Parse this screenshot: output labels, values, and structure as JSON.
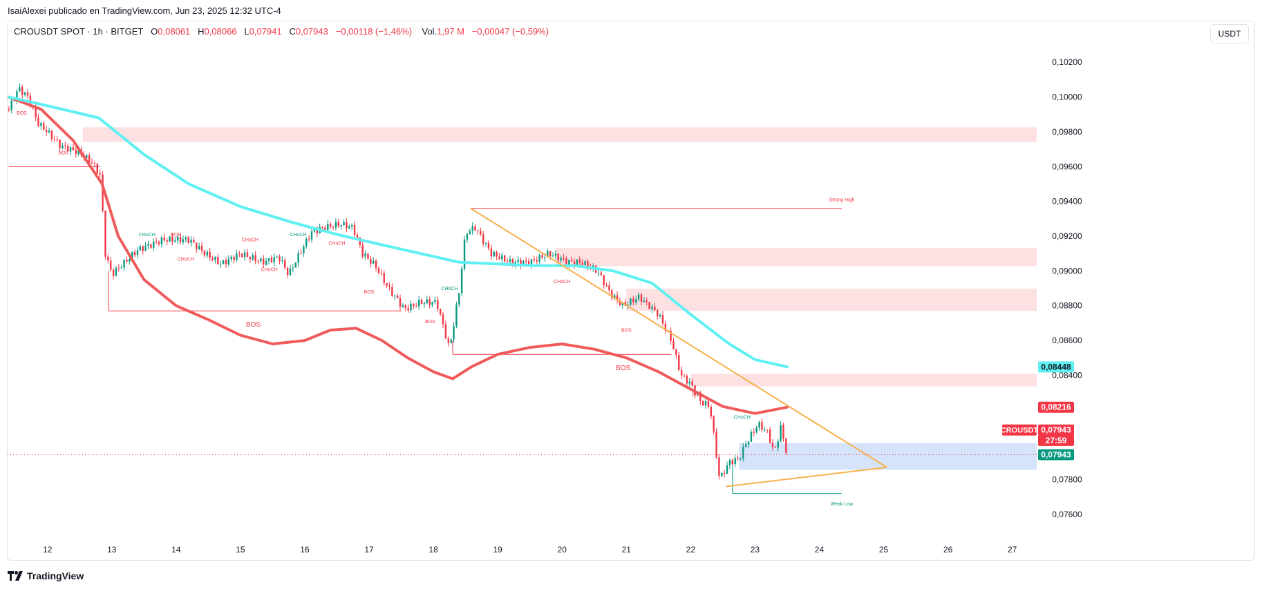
{
  "header": {
    "publisher": "IsaiAlexei publicado en TradingView.com, Jun 23, 2025 12:32 UTC-4"
  },
  "legend": {
    "symbol": "CROUSDT SPOT · 1h · BITGET",
    "open_label": "O",
    "open": "0,08061",
    "high_label": "H",
    "high": "0,08066",
    "low_label": "L",
    "low": "0,07941",
    "close_label": "C",
    "close": "0,07943",
    "change": "−0,00118 (−1,46%)",
    "vol_label": "Vol.",
    "vol": "1,97 M",
    "vol_change": "−0,00047 (−0,59%)"
  },
  "currency_button": "USDT",
  "footer": {
    "brand": "TradingView"
  },
  "colors": {
    "bull": "#089981",
    "bear": "#f23645",
    "ema_fast": "#f05a5a",
    "ema_slow": "#5ef0f2",
    "trendline": "#f7b04b",
    "supply_zone": "#fde0e2",
    "demand_zone": "#d6e4fb"
  },
  "chart_data": {
    "type": "candlestick",
    "symbol": "CROUSDT",
    "timeframe": "1h",
    "x_ticks": [
      "12",
      "13",
      "14",
      "15",
      "16",
      "17",
      "18",
      "19",
      "20",
      "21",
      "22",
      "23",
      "24",
      "25",
      "26",
      "27"
    ],
    "y_ticks": [
      "0,10200",
      "0,10000",
      "0,09800",
      "0,09600",
      "0,09400",
      "0,09200",
      "0,09000",
      "0,08800",
      "0,08600",
      "0,08400",
      "0,07800",
      "0,07600"
    ],
    "ylim": [
      0.075,
      0.1034
    ],
    "xlim": [
      11.38,
      27.38
    ],
    "price_key_points": [
      [
        11.4,
        0.0993
      ],
      [
        11.55,
        0.1005
      ],
      [
        11.7,
        0.1
      ],
      [
        11.85,
        0.0985
      ],
      [
        12.0,
        0.098
      ],
      [
        12.2,
        0.0972
      ],
      [
        12.5,
        0.0968
      ],
      [
        12.7,
        0.0962
      ],
      [
        12.82,
        0.0955
      ],
      [
        12.9,
        0.091
      ],
      [
        13.0,
        0.0898
      ],
      [
        13.4,
        0.0912
      ],
      [
        13.8,
        0.0918
      ],
      [
        14.2,
        0.0918
      ],
      [
        14.45,
        0.091
      ],
      [
        14.7,
        0.0904
      ],
      [
        15.0,
        0.091
      ],
      [
        15.35,
        0.0905
      ],
      [
        15.6,
        0.0908
      ],
      [
        15.75,
        0.0898
      ],
      [
        15.95,
        0.0912
      ],
      [
        16.1,
        0.0922
      ],
      [
        16.3,
        0.0925
      ],
      [
        16.55,
        0.0927
      ],
      [
        16.75,
        0.0925
      ],
      [
        16.9,
        0.091
      ],
      [
        17.1,
        0.0903
      ],
      [
        17.3,
        0.089
      ],
      [
        17.55,
        0.0878
      ],
      [
        17.8,
        0.0882
      ],
      [
        18.05,
        0.0882
      ],
      [
        18.25,
        0.0855
      ],
      [
        18.4,
        0.0888
      ],
      [
        18.5,
        0.0922
      ],
      [
        18.65,
        0.0925
      ],
      [
        18.9,
        0.091
      ],
      [
        19.2,
        0.0905
      ],
      [
        19.5,
        0.0905
      ],
      [
        19.8,
        0.091
      ],
      [
        20.1,
        0.0905
      ],
      [
        20.3,
        0.0905
      ],
      [
        20.55,
        0.09
      ],
      [
        20.75,
        0.0887
      ],
      [
        20.95,
        0.088
      ],
      [
        21.2,
        0.0885
      ],
      [
        21.5,
        0.0875
      ],
      [
        21.7,
        0.086
      ],
      [
        21.85,
        0.084
      ],
      [
        22.0,
        0.0835
      ],
      [
        22.15,
        0.0825
      ],
      [
        22.3,
        0.0822
      ],
      [
        22.45,
        0.078
      ],
      [
        22.6,
        0.079
      ],
      [
        22.75,
        0.0792
      ],
      [
        22.85,
        0.08
      ],
      [
        23.05,
        0.0812
      ],
      [
        23.2,
        0.0807
      ],
      [
        23.3,
        0.0795
      ],
      [
        23.4,
        0.081
      ],
      [
        23.5,
        0.07943
      ]
    ],
    "series": [
      {
        "name": "EMA fast",
        "color": "#f05a5a",
        "points": [
          [
            11.4,
            0.1
          ],
          [
            11.9,
            0.0993
          ],
          [
            12.4,
            0.0975
          ],
          [
            12.85,
            0.095
          ],
          [
            13.1,
            0.092
          ],
          [
            13.5,
            0.0895
          ],
          [
            14.0,
            0.088
          ],
          [
            14.5,
            0.0872
          ],
          [
            15.0,
            0.0863
          ],
          [
            15.5,
            0.0858
          ],
          [
            16.0,
            0.086
          ],
          [
            16.4,
            0.0866
          ],
          [
            16.8,
            0.0867
          ],
          [
            17.2,
            0.086
          ],
          [
            17.6,
            0.085
          ],
          [
            18.0,
            0.0842
          ],
          [
            18.3,
            0.0838
          ],
          [
            18.6,
            0.0845
          ],
          [
            19.0,
            0.0852
          ],
          [
            19.5,
            0.0856
          ],
          [
            20.0,
            0.0858
          ],
          [
            20.5,
            0.0855
          ],
          [
            21.0,
            0.085
          ],
          [
            21.5,
            0.0842
          ],
          [
            22.0,
            0.0832
          ],
          [
            22.5,
            0.0822
          ],
          [
            23.0,
            0.0818
          ],
          [
            23.5,
            0.08216
          ]
        ]
      },
      {
        "name": "EMA slow",
        "color": "#5ef0f2",
        "points": [
          [
            11.4,
            0.1
          ],
          [
            12.0,
            0.0995
          ],
          [
            12.8,
            0.0988
          ],
          [
            13.5,
            0.0967
          ],
          [
            14.2,
            0.095
          ],
          [
            15.0,
            0.0937
          ],
          [
            15.8,
            0.0928
          ],
          [
            16.5,
            0.0921
          ],
          [
            17.2,
            0.0915
          ],
          [
            17.8,
            0.091
          ],
          [
            18.4,
            0.0905
          ],
          [
            19.0,
            0.0904
          ],
          [
            19.6,
            0.0903
          ],
          [
            20.2,
            0.0903
          ],
          [
            20.8,
            0.09
          ],
          [
            21.4,
            0.0893
          ],
          [
            22.0,
            0.0875
          ],
          [
            22.6,
            0.0858
          ],
          [
            23.0,
            0.0849
          ],
          [
            23.5,
            0.08448
          ]
        ]
      }
    ],
    "zones": [
      {
        "kind": "supply",
        "from": 0.09826,
        "to": 0.09742
      },
      {
        "kind": "supply",
        "from": 0.09132,
        "to": 0.09028
      },
      {
        "kind": "supply",
        "from": 0.08898,
        "to": 0.0877
      },
      {
        "kind": "supply",
        "from": 0.08408,
        "to": 0.08336
      },
      {
        "kind": "demand",
        "from": 0.0801,
        "to": 0.07856
      }
    ],
    "labels": [
      {
        "text": "BOS",
        "x": 11.6,
        "y": 0.099,
        "color": "#f23645"
      },
      {
        "text": "BOS",
        "x": 12.25,
        "y": 0.0967,
        "color": "#f23645"
      },
      {
        "text": "EQH",
        "x": 14.0,
        "y": 0.092,
        "color": "#f23645"
      },
      {
        "text": "CHoCH",
        "x": 13.55,
        "y": 0.092,
        "color": "#089981"
      },
      {
        "text": "CHoCH",
        "x": 14.15,
        "y": 0.0906,
        "color": "#f23645"
      },
      {
        "text": "CHoCH",
        "x": 15.15,
        "y": 0.0917,
        "color": "#f23645"
      },
      {
        "text": "CHoCH",
        "x": 15.9,
        "y": 0.092,
        "color": "#089981"
      },
      {
        "text": "CHoCH",
        "x": 15.45,
        "y": 0.09,
        "color": "#f23645"
      },
      {
        "text": "CHoCH",
        "x": 16.5,
        "y": 0.0915,
        "color": "#f23645"
      },
      {
        "text": "BOS",
        "x": 15.2,
        "y": 0.0868,
        "color": "#f23645"
      },
      {
        "text": "BOS",
        "x": 17.0,
        "y": 0.0887,
        "color": "#f23645"
      },
      {
        "text": "BOS",
        "x": 17.95,
        "y": 0.087,
        "color": "#f23645"
      },
      {
        "text": "CHoCH",
        "x": 18.25,
        "y": 0.0889,
        "color": "#089981"
      },
      {
        "text": "Strong High",
        "x": 24.35,
        "y": 0.094,
        "color": "#f23645"
      },
      {
        "text": "CHoCH",
        "x": 20.0,
        "y": 0.0893,
        "color": "#f23645"
      },
      {
        "text": "BOS",
        "x": 21.0,
        "y": 0.0865,
        "color": "#f23645"
      },
      {
        "text": "BOS",
        "x": 20.95,
        "y": 0.0843,
        "color": "#f23645"
      },
      {
        "text": "BOS",
        "x": 22.1,
        "y": 0.0828,
        "color": "#f23645"
      },
      {
        "text": "CHoCH",
        "x": 22.8,
        "y": 0.0815,
        "color": "#089981"
      },
      {
        "text": "Weak Low",
        "x": 24.35,
        "y": 0.0765,
        "color": "#089981"
      }
    ],
    "price_tags": [
      {
        "text": "0,08448",
        "bg": "#5ef0f2",
        "fg": "#131722",
        "y": 0.08448
      },
      {
        "text": "0,08216",
        "bg": "#f23645",
        "fg": "#ffffff",
        "y": 0.08216
      },
      {
        "text": "0,07943",
        "bg": "#f23645",
        "fg": "#ffffff",
        "y": 0.08085
      },
      {
        "text": "27:59",
        "bg": "#f23645",
        "fg": "#ffffff",
        "y": 0.08025
      },
      {
        "text": "0,07943",
        "bg": "#089981",
        "fg": "#ffffff",
        "y": 0.07943
      }
    ],
    "symbol_tag": "CROUSDT"
  }
}
